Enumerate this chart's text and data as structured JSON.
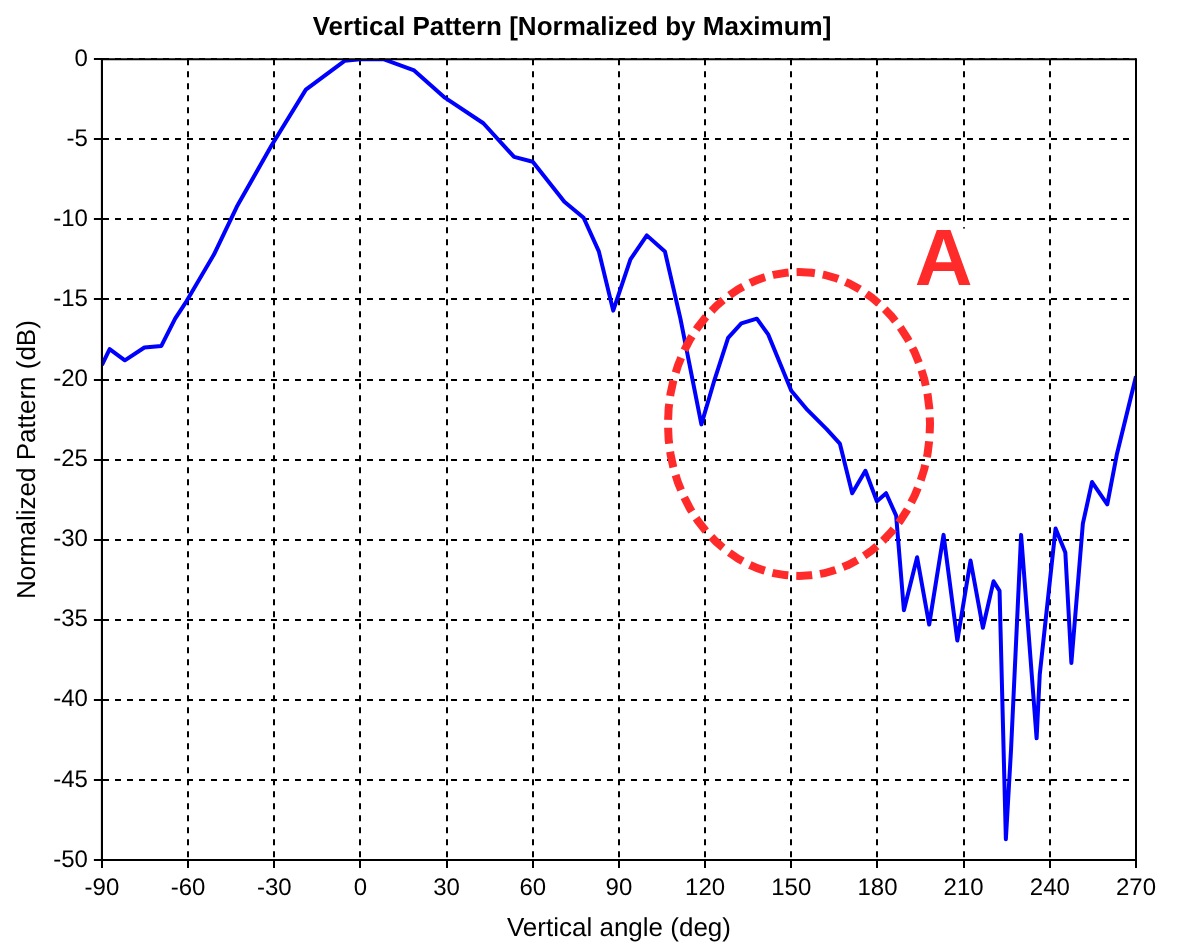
{
  "chart_data": {
    "type": "line",
    "title": "Vertical Pattern [Normalized by Maximum]",
    "xlabel": "Vertical angle (deg)",
    "ylabel": "Normalized Pattern (dB)",
    "annotations": [
      "A"
    ],
    "x": [
      -90,
      -87.3,
      -82,
      -75.2,
      -69.3,
      -64.5,
      -60.5,
      -51,
      -43,
      -31,
      -19,
      -5.5,
      0,
      8,
      18.7,
      29.4,
      42.8,
      53.5,
      60,
      71,
      77.7,
      83,
      88,
      94,
      99.7,
      106,
      111.4,
      118.7,
      123.3,
      128,
      132.6,
      138,
      142,
      150,
      155.6,
      162.3,
      166.9,
      171.2,
      175.8,
      179.8,
      183,
      186.5,
      189.2,
      193.8,
      198,
      203,
      207.8,
      212.4,
      216.7,
      220.4,
      222.5,
      224.7,
      226.5,
      230,
      235.4,
      236.5,
      242,
      245.4,
      247.5,
      251.5,
      254.7,
      260,
      263.3,
      270
    ],
    "series": [
      {
        "color": "#0000ff",
        "values": [
          -19.1,
          -18.1,
          -18.8,
          -18.0,
          -17.9,
          -16.2,
          -15.1,
          -12.2,
          -9.2,
          -5.4,
          -1.9,
          -0.1,
          0,
          0,
          -0.7,
          -2.4,
          -4.0,
          -6.1,
          -6.4,
          -8.9,
          -9.9,
          -12.0,
          -15.7,
          -12.5,
          -11.0,
          -12.0,
          -16.2,
          -22.8,
          -20.0,
          -17.4,
          -16.5,
          -16.2,
          -17.2,
          -20.7,
          -21.9,
          -23.1,
          -24.0,
          -27.1,
          -25.7,
          -27.6,
          -27.1,
          -28.5,
          -34.4,
          -31.1,
          -35.3,
          -29.7,
          -36.3,
          -31.3,
          -35.5,
          -32.6,
          -33.2,
          -48.7,
          -43.1,
          -29.7,
          -42.4,
          -38.4,
          -29.3,
          -30.8,
          -37.7,
          -29.0,
          -26.4,
          -27.8,
          -24.7,
          -19.8
        ]
      }
    ],
    "xlim": [
      -90,
      270
    ],
    "xticks": [
      -90,
      -60,
      -30,
      0,
      30,
      60,
      90,
      120,
      150,
      180,
      210,
      240,
      270
    ],
    "ylim": [
      -50,
      0
    ],
    "yticks": [
      -50,
      -45,
      -40,
      -35,
      -30,
      -25,
      -20,
      -15,
      -10,
      -5,
      0
    ],
    "grid": true,
    "legend": false,
    "marker": "none",
    "line_style": "solid"
  }
}
